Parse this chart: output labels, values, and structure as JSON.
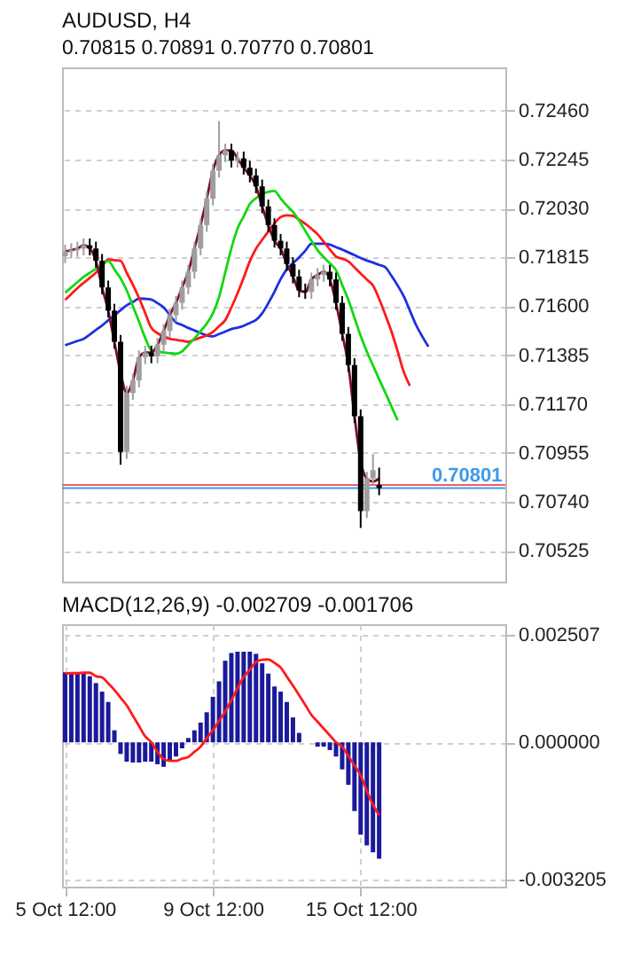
{
  "chart_data": [
    {
      "type": "candlestick",
      "title": "AUDUSD, H4",
      "subtitle": "0.70815 0.70891 0.70770 0.70801",
      "categories": [
        null,
        null,
        null,
        null,
        null,
        null,
        null,
        null,
        null,
        null,
        null,
        null,
        null,
        null,
        null,
        null,
        null,
        null,
        null,
        null,
        null,
        null,
        null,
        null,
        null,
        null,
        null,
        null,
        null,
        null,
        null,
        null,
        null,
        null,
        null,
        null,
        null,
        null,
        null,
        null,
        null,
        null,
        null,
        null,
        null,
        null,
        null,
        null,
        null,
        null,
        null,
        null,
        null,
        null,
        null,
        null,
        null,
        null,
        null,
        null,
        null,
        null,
        null,
        null,
        null,
        null,
        null,
        null,
        null,
        null,
        null,
        null
      ],
      "ohlc": [
        [
          0.7182,
          0.71871,
          0.7179,
          0.71841
        ],
        [
          0.71841,
          0.71877,
          0.71811,
          0.71847
        ],
        [
          0.71847,
          0.71884,
          0.71817,
          0.71854
        ],
        [
          0.71854,
          0.71898,
          0.71824,
          0.71868
        ],
        [
          0.71868,
          0.71898,
          0.71824,
          0.71854
        ],
        [
          0.71854,
          0.71884,
          0.7177,
          0.718
        ],
        [
          0.718,
          0.7183,
          0.71653,
          0.71683
        ],
        [
          0.71683,
          0.71713,
          0.71551,
          0.71581
        ],
        [
          0.71581,
          0.71611,
          0.71414,
          0.71444
        ],
        [
          0.71444,
          0.71474,
          0.70904,
          0.7096
        ],
        [
          0.7096,
          0.7125,
          0.7093,
          0.71219
        ],
        [
          0.71219,
          0.71304,
          0.71189,
          0.71274
        ],
        [
          0.71274,
          0.71406,
          0.71244,
          0.71376
        ],
        [
          0.71376,
          0.71427,
          0.71346,
          0.71397
        ],
        [
          0.71397,
          0.71427,
          0.7135,
          0.7138
        ],
        [
          0.7138,
          0.71461,
          0.7135,
          0.71431
        ],
        [
          0.71431,
          0.71522,
          0.71401,
          0.71492
        ],
        [
          0.71492,
          0.71591,
          0.71462,
          0.71561
        ],
        [
          0.71561,
          0.71645,
          0.71531,
          0.71615
        ],
        [
          0.71615,
          0.71713,
          0.71585,
          0.71683
        ],
        [
          0.71683,
          0.71782,
          0.71653,
          0.71752
        ],
        [
          0.71752,
          0.71884,
          0.71722,
          0.71854
        ],
        [
          0.71854,
          0.71987,
          0.71824,
          0.71957
        ],
        [
          0.71957,
          0.72103,
          0.71927,
          0.72073
        ],
        [
          0.72073,
          0.72226,
          0.72043,
          0.72196
        ],
        [
          0.72196,
          0.72414,
          0.72166,
          0.72264
        ],
        [
          0.72264,
          0.72315,
          0.72234,
          0.72285
        ],
        [
          0.72285,
          0.72315,
          0.7221,
          0.7224
        ],
        [
          0.7224,
          0.7228,
          0.7221,
          0.7225
        ],
        [
          0.7225,
          0.7228,
          0.72179,
          0.72209
        ],
        [
          0.72209,
          0.72239,
          0.72145,
          0.72175
        ],
        [
          0.72175,
          0.72205,
          0.72097,
          0.72127
        ],
        [
          0.72127,
          0.72157,
          0.72009,
          0.72039
        ],
        [
          0.72039,
          0.72069,
          0.71927,
          0.71957
        ],
        [
          0.71957,
          0.71987,
          0.71858,
          0.71888
        ],
        [
          0.71888,
          0.71918,
          0.71824,
          0.71854
        ],
        [
          0.71854,
          0.71884,
          0.71756,
          0.71786
        ],
        [
          0.71786,
          0.71816,
          0.71701,
          0.71731
        ],
        [
          0.71731,
          0.71761,
          0.7164,
          0.7167
        ],
        [
          0.7167,
          0.717,
          0.71633,
          0.71663
        ],
        [
          0.71663,
          0.71748,
          0.71633,
          0.71718
        ],
        [
          0.71718,
          0.71768,
          0.71688,
          0.71738
        ],
        [
          0.71738,
          0.71782,
          0.71708,
          0.71752
        ],
        [
          0.71752,
          0.71782,
          0.71688,
          0.71718
        ],
        [
          0.71718,
          0.71748,
          0.71585,
          0.71615
        ],
        [
          0.71615,
          0.71645,
          0.71449,
          0.71479
        ],
        [
          0.71479,
          0.71509,
          0.71312,
          0.71342
        ],
        [
          0.71342,
          0.71372,
          0.71087,
          0.71117
        ],
        [
          0.71117,
          0.71147,
          0.70626,
          0.707
        ],
        [
          0.707,
          0.70873,
          0.7067,
          0.70843
        ],
        [
          0.70843,
          0.7095,
          0.70813,
          0.7088
        ],
        [
          0.70815,
          0.70891,
          0.7077,
          0.70801
        ],
        null,
        null,
        null,
        null,
        null,
        null,
        null,
        null,
        null,
        null,
        null,
        null,
        null,
        null,
        null,
        null,
        null,
        null,
        null,
        null
      ],
      "colors": [
        "#9e9e9e",
        "#9e9e9e",
        "#9e9e9e",
        "#9e9e9e",
        "#000000",
        "#000000",
        "#000000",
        "#000000",
        "#000000",
        "#000000",
        "#9e9e9e",
        "#9e9e9e",
        "#9e9e9e",
        "#9e9e9e",
        "#000000",
        "#9e9e9e",
        "#9e9e9e",
        "#9e9e9e",
        "#9e9e9e",
        "#9e9e9e",
        "#9e9e9e",
        "#9e9e9e",
        "#9e9e9e",
        "#9e9e9e",
        "#9e9e9e",
        "#9e9e9e",
        "#9e9e9e",
        "#000000",
        "#9e9e9e",
        "#000000",
        "#000000",
        "#000000",
        "#000000",
        "#000000",
        "#000000",
        "#000000",
        "#000000",
        "#000000",
        "#000000",
        "#000000",
        "#9e9e9e",
        "#9e9e9e",
        "#9e9e9e",
        "#000000",
        "#000000",
        "#000000",
        "#000000",
        "#000000",
        "#000000",
        "#9e9e9e",
        "#9e9e9e",
        "#000000",
        null,
        null,
        null,
        null,
        null,
        null,
        null,
        null,
        null,
        null,
        null,
        null,
        null,
        null,
        null,
        null,
        null,
        null,
        null,
        null
      ],
      "series": [
        {
          "type": "line",
          "color": "#1f2fe0",
          "values": [
            0.71429,
            0.71438,
            0.71448,
            0.71457,
            0.71476,
            0.71496,
            0.71516,
            0.71538,
            0.7156,
            0.71583,
            0.71604,
            0.71619,
            0.71634,
            0.71633,
            0.7163,
            0.71614,
            0.71595,
            0.71562,
            0.71529,
            0.71518,
            0.71505,
            0.71494,
            0.71483,
            0.71472,
            0.71468,
            0.71478,
            0.71489,
            0.715,
            0.71506,
            0.71514,
            0.71527,
            0.7154,
            0.71569,
            0.71614,
            0.71664,
            0.71719,
            0.71762,
            0.71789,
            0.71815,
            0.71844,
            0.71875,
            0.71875,
            0.71875,
            0.71871,
            0.7186,
            0.71849,
            0.71837,
            0.71825,
            0.71812,
            0.71801,
            0.71792,
            0.71782,
            0.71772,
            0.71734,
            0.71692,
            0.71644,
            0.71581,
            0.71518,
            0.71468,
            0.71423,
            null,
            null,
            null,
            null,
            null,
            null,
            null,
            null,
            null,
            null,
            null,
            null
          ]
        },
        {
          "type": "line",
          "color": "#ff1a1a",
          "values": [
            0.71628,
            0.71654,
            0.7168,
            0.71703,
            0.71725,
            0.71748,
            0.71776,
            0.71806,
            0.71803,
            0.718,
            0.71747,
            0.71695,
            0.71637,
            0.71571,
            0.71505,
            0.71482,
            0.71468,
            0.71457,
            0.71453,
            0.71449,
            0.71444,
            0.71453,
            0.71463,
            0.71472,
            0.71487,
            0.71513,
            0.71539,
            0.71595,
            0.71657,
            0.71726,
            0.71798,
            0.71853,
            0.71892,
            0.71929,
            0.71964,
            0.71992,
            0.72,
            0.71998,
            0.71981,
            0.71963,
            0.71941,
            0.71917,
            0.71884,
            0.7185,
            0.71819,
            0.71809,
            0.71797,
            0.71771,
            0.71744,
            0.71718,
            0.71691,
            0.71633,
            0.71563,
            0.7149,
            0.71403,
            0.71312,
            0.71251,
            null,
            null,
            null,
            null,
            null,
            null,
            null,
            null,
            null,
            null,
            null,
            null,
            null,
            null,
            null
          ]
        },
        {
          "type": "line",
          "color": "#12d812",
          "values": [
            0.7166,
            0.71683,
            0.71706,
            0.71729,
            0.71747,
            0.71765,
            0.71782,
            0.718,
            0.71762,
            0.71723,
            0.7167,
            0.71601,
            0.71533,
            0.71461,
            0.71408,
            0.71402,
            0.71397,
            0.71394,
            0.71392,
            0.71402,
            0.7143,
            0.71459,
            0.71491,
            0.71524,
            0.71569,
            0.71641,
            0.71748,
            0.71855,
            0.71942,
            0.71995,
            0.7205,
            0.72075,
            0.72094,
            0.72103,
            0.72107,
            0.72074,
            0.72043,
            0.72015,
            0.71977,
            0.71932,
            0.71888,
            0.71847,
            0.71816,
            0.71789,
            0.71759,
            0.71694,
            0.71628,
            0.71549,
            0.7147,
            0.71401,
            0.7134,
            0.7128,
            0.71221,
            0.7116,
            0.71099,
            null,
            null,
            null,
            null,
            null,
            null,
            null,
            null,
            null,
            null,
            null,
            null,
            null,
            null,
            null,
            null,
            null
          ]
        },
        {
          "type": "line",
          "color": "#7a0f2a",
          "values": [
            0.71841,
            0.71847,
            0.71854,
            0.71868,
            0.71854,
            0.718,
            0.71683,
            0.71581,
            0.71444,
            0.71308,
            0.71219,
            0.71274,
            0.71376,
            0.71397,
            0.71397,
            0.71431,
            0.71492,
            0.71561,
            0.71615,
            0.71683,
            0.71752,
            0.71854,
            0.71957,
            0.72073,
            0.72196,
            0.72264,
            0.72285,
            0.72285,
            0.7225,
            0.72209,
            0.72175,
            0.72127,
            0.72039,
            0.71957,
            0.71888,
            0.71854,
            0.71786,
            0.71731,
            0.7167,
            0.71663,
            0.71718,
            0.71738,
            0.71752,
            0.71718,
            0.71615,
            0.71479,
            0.71342,
            0.71117,
            0.70919,
            0.70843,
            0.7083,
            0.70843,
            null,
            null,
            null,
            null,
            null,
            null,
            null,
            null,
            null,
            null,
            null,
            null,
            null,
            null,
            null,
            null,
            null,
            null,
            null,
            null
          ]
        }
      ],
      "ylim": [
        0.7039,
        0.7265
      ],
      "yticks": [
        {
          "value": 0.7246,
          "label": "0.72460"
        },
        0.72245,
        {
          "value": 0.7203,
          "label": "0.72030"
        },
        0.71815,
        {
          "value": 0.716,
          "label": "0.71600"
        },
        0.71385,
        {
          "value": 0.7117,
          "label": "0.71170"
        },
        0.70955,
        {
          "value": 0.7074,
          "label": "0.70740"
        },
        0.70525
      ],
      "grid": "y",
      "ref_lines": [
        {
          "axis": "y",
          "value": 0.70815,
          "color": "#f06060",
          "line_style": "solid"
        },
        {
          "axis": "y",
          "value": 0.70801,
          "label": "0.70801",
          "color": "#3d9be9",
          "line_style": "solid"
        }
      ]
    },
    {
      "type": "bar",
      "title": "MACD(12,26,9) -0.002709 -0.001706",
      "categories": [
        "5 Oct 12:00",
        null,
        null,
        null,
        null,
        null,
        null,
        null,
        null,
        null,
        null,
        null,
        null,
        null,
        null,
        null,
        null,
        null,
        null,
        null,
        null,
        null,
        null,
        null,
        "9 Oct 12:00",
        null,
        null,
        null,
        null,
        null,
        null,
        null,
        null,
        null,
        null,
        null,
        null,
        null,
        null,
        null,
        null,
        null,
        null,
        null,
        null,
        null,
        null,
        null,
        "15 Oct 12:00",
        null,
        null,
        null,
        null,
        null,
        null,
        null,
        null,
        null,
        null,
        null,
        null,
        null,
        null,
        null,
        null,
        null,
        null,
        null,
        null,
        null,
        null,
        null
      ],
      "series": [
        {
          "color": "#1a1a9a",
          "values": [
            0.00163,
            0.0016,
            0.0016,
            0.00163,
            0.00154,
            0.00138,
            0.00118,
            0.00094,
            0.00028,
            -0.00027,
            -0.00045,
            -0.00047,
            -0.00047,
            -0.00045,
            -0.00045,
            -0.00051,
            -0.00057,
            -0.00045,
            -0.00033,
            -0.00014,
            0.0001,
            0.00028,
            0.00046,
            0.0007,
            0.00106,
            0.00142,
            0.0019,
            0.00208,
            0.00211,
            0.00211,
            0.00211,
            0.00206,
            0.00184,
            0.0016,
            0.0013,
            0.00118,
            0.00094,
            0.00058,
            0.00022,
            0,
            0,
            -0.0001,
            -0.0001,
            -0.00018,
            -0.00033,
            -0.00063,
            -0.00099,
            -0.0016,
            -0.00215,
            -0.0024,
            -0.00256,
            -0.00271,
            null,
            null,
            null,
            null,
            null,
            null,
            null,
            null,
            null,
            null,
            null,
            null,
            null,
            null,
            null,
            null,
            null,
            null,
            null,
            null
          ]
        },
        {
          "type": "line",
          "color": "#ff1a1a",
          "values": [
            0.0016,
            0.00161,
            0.00161,
            0.00162,
            0.00162,
            0.00154,
            0.00151,
            0.00137,
            0.00122,
            0.00104,
            0.00086,
            0.00062,
            0.00038,
            0.00014,
            0,
            -0.00022,
            -0.00039,
            -0.00043,
            -0.00043,
            -0.00038,
            -0.00034,
            -0.00022,
            -0.0001,
            0.0001,
            0.00028,
            0.0005,
            0.00072,
            0.00098,
            0.00126,
            0.00152,
            0.00169,
            0.00187,
            0.00192,
            0.00193,
            0.00185,
            0.00174,
            0.00153,
            0.00132,
            0.0011,
            0.00087,
            0.00064,
            0.00048,
            0.00032,
            0.00016,
            0,
            -0.0001,
            -0.00032,
            -0.00054,
            -0.00077,
            -0.00113,
            -0.00145,
            -0.0017,
            null,
            null,
            null,
            null,
            null,
            null,
            null,
            null,
            null,
            null,
            null,
            null,
            null,
            null,
            null,
            null,
            null,
            null,
            null,
            null
          ]
        }
      ],
      "ylim": [
        -0.00336,
        0.00275
      ],
      "yticks": [
        0.002507,
        {
          "value": 0,
          "label": "0.000000"
        },
        -0.003205
      ],
      "grid": true
    }
  ]
}
